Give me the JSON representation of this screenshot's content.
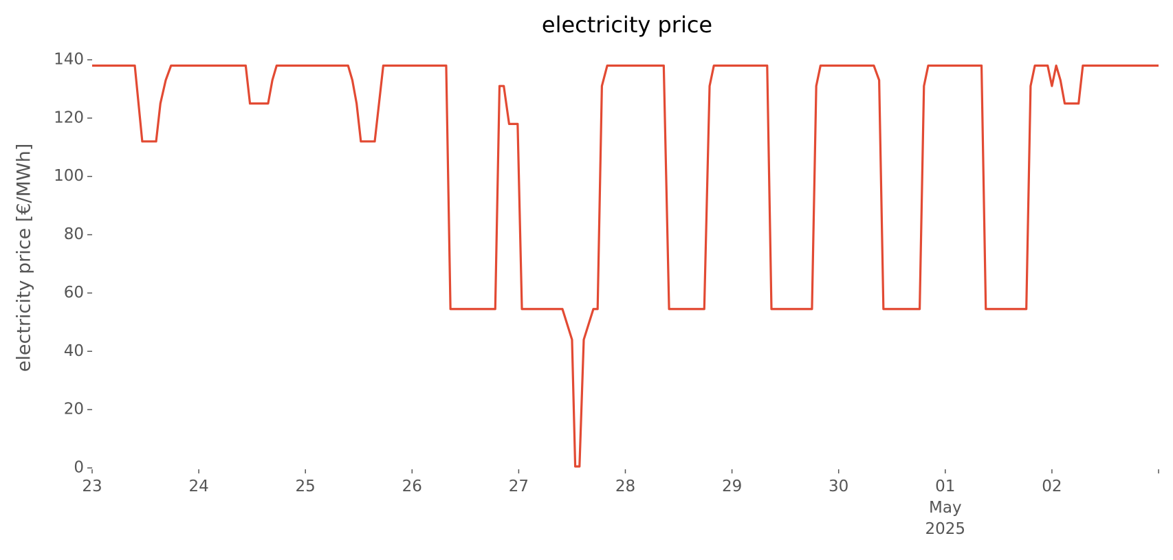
{
  "chart_data": {
    "type": "line",
    "title": "electricity price",
    "y_label": "electricity price [€/MWh]",
    "x": [
      0,
      0.4,
      0.47,
      0.6,
      0.64,
      0.69,
      0.74,
      1.44,
      1.48,
      1.65,
      1.69,
      1.73,
      2.4,
      2.44,
      2.48,
      2.52,
      2.65,
      2.73,
      3.32,
      3.36,
      3.78,
      3.82,
      3.86,
      3.91,
      3.99,
      4.03,
      4.41,
      4.5,
      4.53,
      4.57,
      4.61,
      4.7,
      4.74,
      4.78,
      4.83,
      5.36,
      5.41,
      5.74,
      5.79,
      5.83,
      6.33,
      6.37,
      6.75,
      6.79,
      6.83,
      7.33,
      7.38,
      7.42,
      7.76,
      7.8,
      7.84,
      8.34,
      8.38,
      8.76,
      8.8,
      8.84,
      8.96,
      9.0,
      9.04,
      9.08,
      9.12,
      9.25,
      9.29,
      10.0
    ],
    "series": [
      {
        "name": "electricity price",
        "color": "#e24a33",
        "values": [
          138,
          138,
          112,
          112,
          125,
          133,
          138,
          138,
          125,
          125,
          133,
          138,
          138,
          133,
          125,
          112,
          112,
          138,
          138,
          54.5,
          54.5,
          131,
          131,
          118,
          118,
          54.5,
          54.5,
          44,
          0.5,
          0.5,
          44,
          54.5,
          54.5,
          131,
          138,
          138,
          54.5,
          54.5,
          131,
          138,
          138,
          54.5,
          54.5,
          131,
          138,
          138,
          133,
          54.5,
          54.5,
          131,
          138,
          138,
          54.5,
          54.5,
          131,
          138,
          138,
          131,
          138,
          133,
          125,
          125,
          138,
          138
        ]
      }
    ],
    "xlim": [
      0,
      10
    ],
    "xticks": [
      {
        "value": 0,
        "label": "23"
      },
      {
        "value": 1,
        "label": "24"
      },
      {
        "value": 2,
        "label": "25"
      },
      {
        "value": 3,
        "label": "26"
      },
      {
        "value": 4,
        "label": "27"
      },
      {
        "value": 5,
        "label": "28"
      },
      {
        "value": 6,
        "label": "29"
      },
      {
        "value": 7,
        "label": "30"
      },
      {
        "value": 8,
        "label": "01\nMay\n2025"
      },
      {
        "value": 9,
        "label": "02"
      },
      {
        "value": 10,
        "label": null
      }
    ],
    "ylim": [
      0,
      140
    ],
    "yticks": [
      0,
      20,
      40,
      60,
      80,
      100,
      120,
      140
    ],
    "grid": false
  }
}
